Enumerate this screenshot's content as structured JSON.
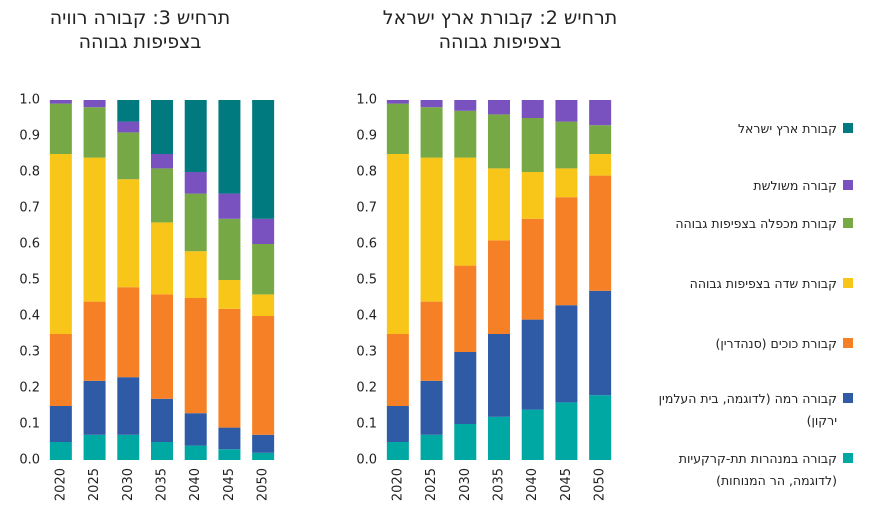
{
  "chart_data": [
    {
      "type": "stacked_bar",
      "title": "תרחיש 3: קבורה רוויה בצפיפות גבוהה",
      "categories": [
        "2020",
        "2025",
        "2030",
        "2035",
        "2040",
        "2045",
        "2050"
      ],
      "ylim": [
        0,
        1
      ],
      "yticks": [
        {
          "value": 0,
          "label": "0.0"
        },
        0.1,
        0.2,
        0.3,
        0.4,
        0.5,
        0.6,
        0.7,
        0.8,
        0.9,
        {
          "value": 1,
          "label": "1.0"
        }
      ],
      "series": [
        {
          "name": "קבורה במנהרות תת-קרקעיות (לדוגמה, הר המנוחות)",
          "color": "#00a8a3",
          "values": [
            0.05,
            0.07,
            0.07,
            0.05,
            0.04,
            0.03,
            0.02
          ]
        },
        {
          "name": "קבורה רמה (לדוגמה, בית העלמין ירקון)",
          "color": "#2f5aa6",
          "values": [
            0.1,
            0.15,
            0.16,
            0.12,
            0.09,
            0.06,
            0.05
          ]
        },
        {
          "name": "קבורת כוכים (סנהדרין)",
          "color": "#f58025",
          "values": [
            0.2,
            0.22,
            0.25,
            0.29,
            0.32,
            0.33,
            0.33
          ]
        },
        {
          "name": "קבורת שדה בצפיפות גבוהה",
          "color": "#f8c519",
          "values": [
            0.5,
            0.4,
            0.3,
            0.2,
            0.13,
            0.08,
            0.06
          ]
        },
        {
          "name": "קבורת מכפלה בצפיפות גבוהה",
          "color": "#76a945",
          "values": [
            0.14,
            0.14,
            0.13,
            0.15,
            0.16,
            0.17,
            0.14
          ]
        },
        {
          "name": "קבורה משולשת",
          "color": "#7a52c0",
          "values": [
            0.01,
            0.02,
            0.03,
            0.04,
            0.06,
            0.07,
            0.07
          ]
        },
        {
          "name": "קבורת ארץ ישראל",
          "color": "#007a7e",
          "values": [
            0,
            0,
            0.06,
            0.15,
            0.2,
            0.26,
            0.33
          ]
        }
      ]
    },
    {
      "type": "stacked_bar",
      "title": "תרחיש 2: קבורת ארץ ישראל בצפיפות גבוהה",
      "categories": [
        "2020",
        "2025",
        "2030",
        "2035",
        "2040",
        "2045",
        "2050"
      ],
      "ylim": [
        0,
        1
      ],
      "yticks": [
        {
          "value": 0,
          "label": "0.0"
        },
        0.1,
        0.2,
        0.3,
        0.4,
        0.5,
        0.6,
        0.7,
        0.8,
        0.9,
        {
          "value": 1,
          "label": "1.0"
        }
      ],
      "series": [
        {
          "name": "קבורה במנהרות תת-קרקעיות (לדוגמה, הר המנוחות)",
          "color": "#00a8a3",
          "values": [
            0.05,
            0.07,
            0.1,
            0.12,
            0.14,
            0.16,
            0.18
          ]
        },
        {
          "name": "קבורה רמה (לדוגמה, בית העלמין ירקון)",
          "color": "#2f5aa6",
          "values": [
            0.1,
            0.15,
            0.2,
            0.23,
            0.25,
            0.27,
            0.29
          ]
        },
        {
          "name": "קבורת כוכים (סנהדרין)",
          "color": "#f58025",
          "values": [
            0.2,
            0.22,
            0.24,
            0.26,
            0.28,
            0.3,
            0.32
          ]
        },
        {
          "name": "קבורת שדה בצפיפות גבוהה",
          "color": "#f8c519",
          "values": [
            0.5,
            0.4,
            0.3,
            0.2,
            0.13,
            0.08,
            0.06
          ]
        },
        {
          "name": "קבורת מכפלה בצפיפות גבוהה",
          "color": "#76a945",
          "values": [
            0.14,
            0.14,
            0.13,
            0.15,
            0.15,
            0.13,
            0.08
          ]
        },
        {
          "name": "קבורה משולשת",
          "color": "#7a52c0",
          "values": [
            0.01,
            0.02,
            0.03,
            0.04,
            0.05,
            0.06,
            0.07
          ]
        },
        {
          "name": "קבורת ארץ ישראל",
          "color": "#007a7e",
          "values": [
            0,
            0,
            0,
            0,
            0,
            0,
            0
          ]
        }
      ]
    }
  ]
}
